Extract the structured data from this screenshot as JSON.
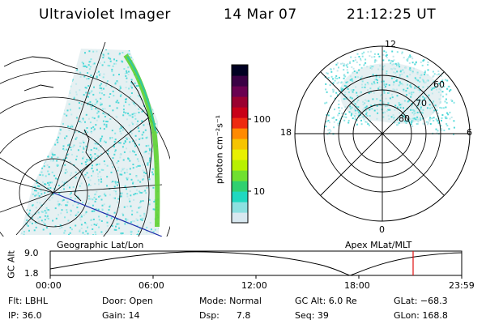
{
  "header": {
    "title": "Ultraviolet Imager",
    "date": "14 Mar 07",
    "time": "21:12:25 UT"
  },
  "left_panel": {
    "caption": "Geographic Lat/Lon"
  },
  "right_panel": {
    "caption": "Apex MLat/MLT",
    "mlt_labels": {
      "top": "12",
      "left": "18",
      "right": "6",
      "bottom": "0"
    },
    "lat_labels": [
      "60",
      "70",
      "80"
    ]
  },
  "colorbar": {
    "unit_label": "photon cm⁻²s⁻¹",
    "ticks": [
      "100",
      "10"
    ],
    "colors": [
      "#000022",
      "#3a0044",
      "#6a0050",
      "#9a0030",
      "#c80018",
      "#ee2a10",
      "#ff8a00",
      "#f6c400",
      "#e8f000",
      "#b8f000",
      "#70e030",
      "#30d070",
      "#20d8c0",
      "#8ce0e0",
      "#d8e8f0"
    ]
  },
  "timeline": {
    "y_axis_label": "GC Alt",
    "y_ticks": [
      "9.0",
      "1.8"
    ],
    "x_ticks": [
      "00:00",
      "06:00",
      "12:00",
      "18:00",
      "23:59"
    ],
    "marker_time": "21:12"
  },
  "info": {
    "filter": "Flt: LBHL",
    "ip": "IP: 36.0",
    "door": "Door: Open",
    "gain": "Gain: 14",
    "mode": "Mode: Normal",
    "dsp": "Dsp:      7.8",
    "gc_alt": "GC Alt: 6.0 Re",
    "seq": "Seq: 39",
    "glat": "GLat: −68.3",
    "glon": "GLon: 168.8"
  }
}
